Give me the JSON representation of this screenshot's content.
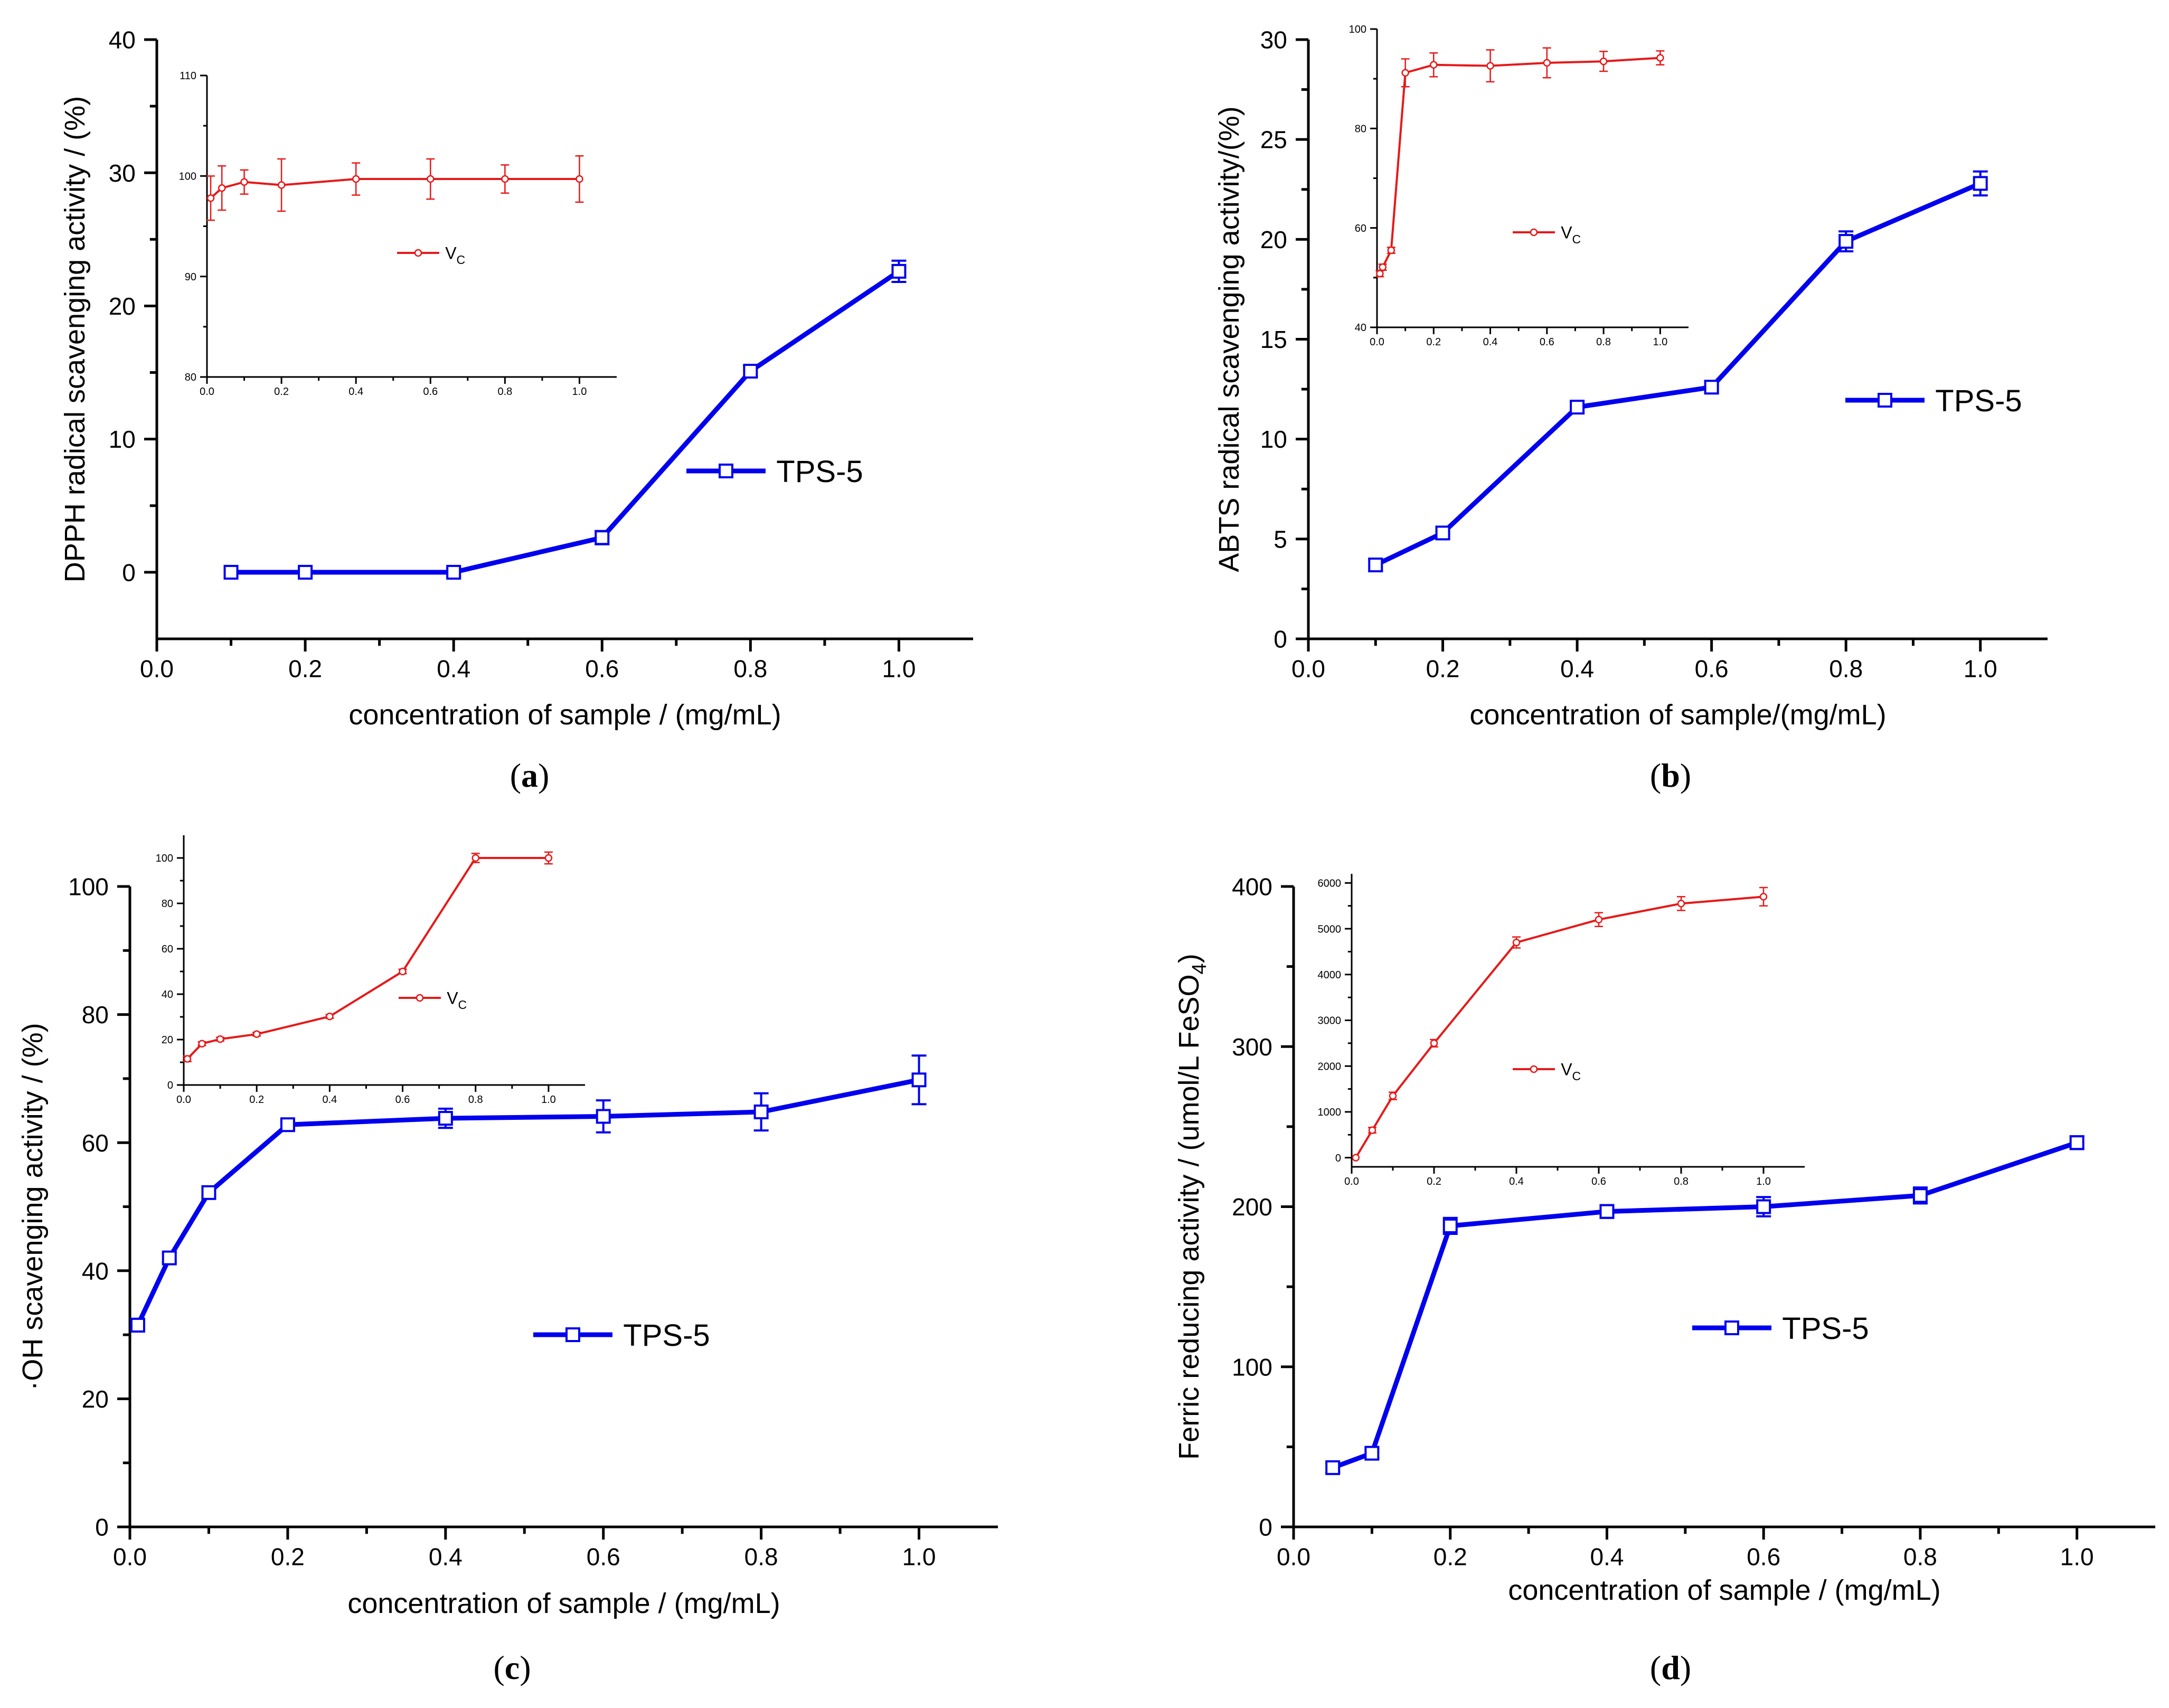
{
  "colors": {
    "main": "#0000ee",
    "inset": "#e61919",
    "axis": "#000000"
  },
  "chart_data": [
    {
      "type": "line",
      "panel": "(a)",
      "xlabel": "concentration of sample / (mg/mL)",
      "ylabel": "DPPH radical scavenging activity / (%)",
      "xlim": [
        0.0,
        1.1
      ],
      "ylim": [
        -5,
        40
      ],
      "xticks": [
        "0.0",
        "0.2",
        "0.4",
        "0.6",
        "0.8",
        "1.0"
      ],
      "yticks": [
        "0",
        "10",
        "20",
        "30",
        "40"
      ],
      "legend": "right-middle",
      "series": [
        {
          "name": "TPS-5",
          "x": [
            0.1,
            0.2,
            0.4,
            0.6,
            0.8,
            1.0
          ],
          "values": [
            0.0,
            0.0,
            0.0,
            2.6,
            15.1,
            22.6
          ],
          "errors": [
            0.3,
            0.3,
            0.3,
            0.5,
            0.4,
            0.8
          ]
        }
      ],
      "inset": {
        "xlim": [
          0.0,
          1.1
        ],
        "ylim": [
          80,
          110
        ],
        "xticks": [
          "0.0",
          "0.2",
          "0.4",
          "0.6",
          "0.8",
          "1.0"
        ],
        "yticks": [
          "80",
          "90",
          "100",
          "110"
        ],
        "legend": "center",
        "series": [
          {
            "name": "V",
            "name_sub": "C",
            "x": [
              0.01,
              0.04,
              0.1,
              0.2,
              0.4,
              0.6,
              0.8,
              1.0
            ],
            "values": [
              97.8,
              98.8,
              99.4,
              99.1,
              99.7,
              99.7,
              99.7,
              99.7
            ],
            "errors": [
              2.2,
              2.2,
              1.2,
              2.6,
              1.6,
              2.0,
              1.4,
              2.3
            ]
          }
        ]
      }
    },
    {
      "type": "line",
      "panel": "(b)",
      "xlabel": "concentration of sample/(mg/mL)",
      "ylabel": "ABTS radical scavenging activity/(%)",
      "xlim": [
        0.0,
        1.1
      ],
      "ylim": [
        0,
        30
      ],
      "xticks": [
        "0.0",
        "0.2",
        "0.4",
        "0.6",
        "0.8",
        "1.0"
      ],
      "yticks": [
        "0",
        "5",
        "10",
        "15",
        "20",
        "25",
        "30"
      ],
      "legend": "right-middle",
      "series": [
        {
          "name": "TPS-5",
          "x": [
            0.1,
            0.2,
            0.4,
            0.6,
            0.8,
            1.0
          ],
          "values": [
            3.7,
            5.3,
            11.6,
            12.6,
            19.9,
            22.8
          ],
          "errors": [
            0.3,
            0.3,
            0.3,
            0.3,
            0.5,
            0.6
          ]
        }
      ],
      "inset": {
        "xlim": [
          0.0,
          1.1
        ],
        "ylim": [
          40,
          100
        ],
        "xticks": [
          "0.0",
          "0.2",
          "0.4",
          "0.6",
          "0.8",
          "1.0"
        ],
        "yticks": [
          "40",
          "60",
          "80",
          "100"
        ],
        "legend": "right-middle",
        "series": [
          {
            "name": "V",
            "name_sub": "C",
            "x": [
              0.01,
              0.02,
              0.05,
              0.1,
              0.2,
              0.4,
              0.6,
              0.8,
              1.0
            ],
            "values": [
              50.8,
              52.1,
              55.5,
              91.2,
              92.8,
              92.6,
              93.2,
              93.5,
              94.2
            ],
            "errors": [
              0.6,
              0.6,
              0.6,
              2.8,
              2.4,
              3.2,
              3.0,
              2.0,
              1.4
            ]
          }
        ]
      }
    },
    {
      "type": "line",
      "panel": "(c)",
      "xlabel": "concentration of sample / (mg/mL)",
      "ylabel": "·OH scavenging activity / (%)",
      "xlim": [
        0.0,
        1.1
      ],
      "ylim": [
        0,
        100
      ],
      "xticks": [
        "0.0",
        "0.2",
        "0.4",
        "0.6",
        "0.8",
        "1.0"
      ],
      "yticks": [
        "0",
        "20",
        "40",
        "60",
        "80",
        "100"
      ],
      "legend": "right-middle",
      "series": [
        {
          "name": "TPS-5",
          "x": [
            0.01,
            0.05,
            0.1,
            0.2,
            0.4,
            0.6,
            0.8,
            1.0
          ],
          "values": [
            31.5,
            42.0,
            52.2,
            62.8,
            63.8,
            64.1,
            64.8,
            69.8
          ],
          "errors": [
            1.0,
            0.8,
            0.8,
            0.7,
            1.5,
            2.5,
            2.9,
            3.8
          ]
        }
      ],
      "inset": {
        "xlim": [
          0.0,
          1.1
        ],
        "ylim": [
          0,
          110
        ],
        "xticks": [
          "0.0",
          "0.2",
          "0.4",
          "0.6",
          "0.8",
          "1.0"
        ],
        "yticks": [
          "0",
          "20",
          "40",
          "60",
          "80",
          "100"
        ],
        "legend": "right-middle",
        "series": [
          {
            "name": "V",
            "name_sub": "C",
            "x": [
              0.01,
              0.05,
              0.1,
              0.2,
              0.4,
              0.6,
              0.8,
              1.0
            ],
            "values": [
              11.5,
              18.2,
              20.2,
              22.4,
              30.2,
              50.0,
              100.0,
              100.0
            ],
            "errors": [
              1.2,
              0.8,
              0.8,
              0.8,
              0.8,
              1.0,
              2.0,
              2.6
            ]
          }
        ]
      }
    },
    {
      "type": "line",
      "panel": "(d)",
      "xlabel": "concentration of sample / (mg/mL)",
      "ylabel": "Ferric reducing activity / (umol/L FeSO",
      "ylabel_sub": "4",
      "ylabel_end": ")",
      "xlim": [
        0.0,
        1.1
      ],
      "ylim": [
        0,
        400
      ],
      "xticks": [
        "0.0",
        "0.2",
        "0.4",
        "0.6",
        "0.8",
        "1.0"
      ],
      "yticks": [
        "0",
        "100",
        "200",
        "300",
        "400"
      ],
      "legend": "right-middle",
      "series": [
        {
          "name": "TPS-5",
          "x": [
            0.05,
            0.1,
            0.2,
            0.4,
            0.6,
            0.8,
            1.0
          ],
          "values": [
            37,
            46,
            188,
            197,
            200,
            207,
            240
          ],
          "errors": [
            3,
            3,
            5,
            4,
            6,
            5,
            4
          ]
        }
      ],
      "inset": {
        "xlim": [
          0.0,
          1.1
        ],
        "ylim": [
          -200,
          6200
        ],
        "xticks": [
          "0.0",
          "0.2",
          "0.4",
          "0.6",
          "0.8",
          "1.0"
        ],
        "yticks": [
          "0",
          "1000",
          "2000",
          "3000",
          "4000",
          "5000",
          "6000"
        ],
        "legend": "center",
        "series": [
          {
            "name": "V",
            "name_sub": "C",
            "x": [
              0.01,
              0.05,
              0.1,
              0.2,
              0.4,
              0.6,
              0.8,
              1.0
            ],
            "values": [
              0,
              600,
              1350,
              2500,
              4700,
              5200,
              5550,
              5700
            ],
            "errors": [
              0,
              60,
              80,
              80,
              120,
              150,
              150,
              200
            ]
          }
        ]
      }
    }
  ]
}
